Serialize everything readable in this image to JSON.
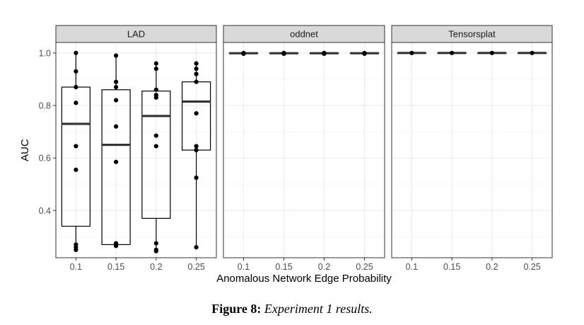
{
  "chart_data": {
    "type": "boxplot",
    "facets": [
      "LAD",
      "oddnet",
      "Tensorsplat"
    ],
    "categories": [
      "0.1",
      "0.15",
      "0.2",
      "0.25"
    ],
    "xlabel": "Anomalous Network Edge Probability",
    "ylabel": "AUC",
    "ylim": [
      0.22,
      1.04
    ],
    "yticks": [
      0.4,
      0.6,
      0.8,
      1.0
    ],
    "ytick_labels": [
      "0.4",
      "0.6",
      "0.8",
      "1.0"
    ],
    "grid": true,
    "panels": [
      {
        "name": "LAD",
        "boxes": [
          {
            "category": "0.1",
            "q1": 0.34,
            "median": 0.73,
            "q3": 0.87,
            "whisker_low": 0.25,
            "whisker_high": 1.0
          },
          {
            "category": "0.15",
            "q1": 0.27,
            "median": 0.65,
            "q3": 0.86,
            "whisker_low": 0.26,
            "whisker_high": 0.99
          },
          {
            "category": "0.2",
            "q1": 0.37,
            "median": 0.76,
            "q3": 0.855,
            "whisker_low": 0.245,
            "whisker_high": 0.96
          },
          {
            "category": "0.25",
            "q1": 0.63,
            "median": 0.815,
            "q3": 0.89,
            "whisker_low": 0.26,
            "whisker_high": 0.96
          }
        ],
        "points": [
          {
            "category": "0.1",
            "values": [
              1.0,
              0.93,
              0.87,
              0.81,
              0.645,
              0.555,
              0.27,
              0.26,
              0.25
            ]
          },
          {
            "category": "0.15",
            "values": [
              0.99,
              0.89,
              0.87,
              0.82,
              0.72,
              0.585,
              0.275,
              0.27,
              0.265
            ]
          },
          {
            "category": "0.2",
            "values": [
              0.96,
              0.94,
              0.86,
              0.84,
              0.83,
              0.685,
              0.645,
              0.275,
              0.25,
              0.245
            ]
          },
          {
            "category": "0.25",
            "values": [
              0.96,
              0.94,
              0.92,
              0.89,
              0.77,
              0.645,
              0.63,
              0.525,
              0.26
            ]
          }
        ]
      },
      {
        "name": "oddnet",
        "boxes": [
          {
            "category": "0.1",
            "q1": 0.998,
            "median": 0.999,
            "q3": 1.0,
            "whisker_low": 0.997,
            "whisker_high": 1.0
          },
          {
            "category": "0.15",
            "q1": 0.998,
            "median": 0.999,
            "q3": 1.0,
            "whisker_low": 0.997,
            "whisker_high": 1.0
          },
          {
            "category": "0.2",
            "q1": 0.998,
            "median": 0.999,
            "q3": 1.0,
            "whisker_low": 0.997,
            "whisker_high": 1.0
          },
          {
            "category": "0.25",
            "q1": 0.998,
            "median": 0.999,
            "q3": 1.0,
            "whisker_low": 0.997,
            "whisker_high": 1.0
          }
        ],
        "points": [
          {
            "category": "0.1",
            "values": [
              1.0,
              0.999,
              0.998,
              0.997
            ]
          },
          {
            "category": "0.15",
            "values": [
              1.0,
              0.999,
              0.998,
              0.997
            ]
          },
          {
            "category": "0.2",
            "values": [
              1.0,
              0.999,
              0.998,
              0.997
            ]
          },
          {
            "category": "0.25",
            "values": [
              1.0,
              0.999,
              0.998,
              0.997
            ]
          }
        ]
      },
      {
        "name": "Tensorsplat",
        "boxes": [
          {
            "category": "0.1",
            "q1": 1.0,
            "median": 1.0,
            "q3": 1.0,
            "whisker_low": 1.0,
            "whisker_high": 1.0
          },
          {
            "category": "0.15",
            "q1": 1.0,
            "median": 1.0,
            "q3": 1.0,
            "whisker_low": 1.0,
            "whisker_high": 1.0
          },
          {
            "category": "0.2",
            "q1": 1.0,
            "median": 1.0,
            "q3": 1.0,
            "whisker_low": 1.0,
            "whisker_high": 1.0
          },
          {
            "category": "0.25",
            "q1": 1.0,
            "median": 1.0,
            "q3": 1.0,
            "whisker_low": 1.0,
            "whisker_high": 1.0
          }
        ],
        "points": [
          {
            "category": "0.1",
            "values": [
              1.0
            ]
          },
          {
            "category": "0.15",
            "values": [
              1.0
            ]
          },
          {
            "category": "0.2",
            "values": [
              1.0
            ]
          },
          {
            "category": "0.25",
            "values": [
              1.0
            ]
          }
        ]
      }
    ]
  },
  "caption": {
    "label": "Figure 8:",
    "text": "Experiment 1 results."
  },
  "colors": {
    "strip_fill": "#d9d9d9",
    "panel_border": "#333333",
    "grid_major": "#ebebeb",
    "grid_minor": "#f5f5f5",
    "box_stroke": "#000000",
    "median": "#333333",
    "point": "#000000"
  }
}
